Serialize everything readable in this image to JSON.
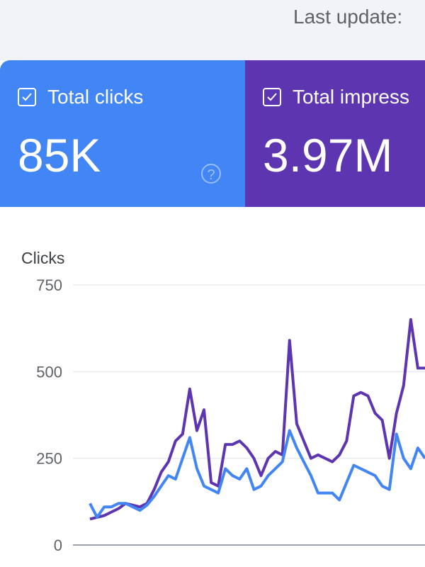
{
  "header": {
    "last_update_label": "Last update:"
  },
  "cards": [
    {
      "label": "Total clicks",
      "value": "85K",
      "color": "#4285f4",
      "checked": true,
      "icon": "help-icon"
    },
    {
      "label": "Total impress",
      "value": "3.97M",
      "color": "#5e35b1",
      "checked": true
    }
  ],
  "chart_data": {
    "type": "line",
    "ylabel": "Clicks",
    "ylim": [
      0,
      750
    ],
    "yticks": [
      "750",
      "500",
      "250",
      "0"
    ],
    "ytick_values": [
      750,
      500,
      250,
      0
    ],
    "grid": true,
    "series": [
      {
        "color": "#4285f4",
        "values": [
          120,
          80,
          110,
          110,
          120,
          120,
          110,
          100,
          115,
          140,
          170,
          200,
          190,
          250,
          310,
          220,
          170,
          160,
          150,
          220,
          200,
          190,
          220,
          160,
          170,
          200,
          220,
          240,
          330,
          280,
          240,
          200,
          150,
          150,
          150,
          130,
          180,
          230,
          220,
          210,
          200,
          170,
          160,
          320,
          250,
          220,
          280,
          250
        ]
      },
      {
        "color": "#5e35b1",
        "values": [
          75,
          80,
          85,
          95,
          105,
          120,
          115,
          110,
          120,
          160,
          210,
          240,
          300,
          320,
          450,
          330,
          390,
          180,
          170,
          290,
          290,
          300,
          280,
          250,
          200,
          250,
          270,
          260,
          590,
          350,
          300,
          250,
          260,
          250,
          240,
          260,
          300,
          430,
          440,
          430,
          380,
          360,
          250,
          380,
          460,
          650,
          510,
          510
        ]
      }
    ]
  }
}
